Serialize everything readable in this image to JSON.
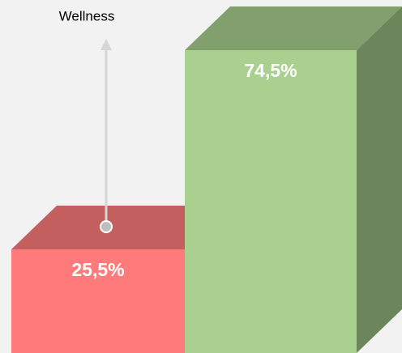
{
  "chart_data": {
    "type": "bar",
    "categories": [
      null,
      null
    ],
    "values": [
      25.5,
      74.5
    ],
    "value_labels": [
      "25,5%",
      "74,5%"
    ],
    "colors": [
      "#ff7b7b",
      "#a9d08e"
    ],
    "annotation": "Wellness"
  }
}
